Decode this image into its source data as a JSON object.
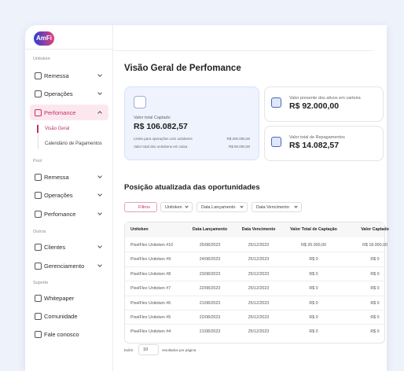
{
  "logo": "AmFi",
  "sidebar": [
    {
      "label": "Unitoken",
      "items": [
        "Remessa",
        "Operações",
        "Perfomance"
      ],
      "active": 2,
      "submenu": [
        "Visão Geral",
        "Calendário de Pagamentos"
      ]
    },
    {
      "label": "Pool",
      "items": [
        "Remessa",
        "Operações",
        "Perfomance"
      ]
    },
    {
      "label": "Outros",
      "items": [
        "Clientes",
        "Gerenciamento"
      ]
    },
    {
      "label": "Suporte",
      "items": [
        "Whitepaper",
        "Comunidade",
        "Fale conosco"
      ]
    }
  ],
  "header": {
    "title": "Visão Geral de Perfomance"
  },
  "cards": [
    {
      "label": "Valor total Captado",
      "amount": "R$ 106.082,57",
      "details": [
        [
          "Limite para operações com unitokens",
          "R$ 200.000,00"
        ],
        [
          "Valor total dos unitokens em caixa",
          "R$ 80.000,00"
        ]
      ]
    },
    {
      "label": "Valor presente dos ativos em carteira",
      "amount": "R$ 92.000,00"
    },
    {
      "label": "Valor total de Repagamentos",
      "amount": "R$ 14.082,57"
    }
  ],
  "section": {
    "title": "Posição atualizada das oportunidades",
    "filters": [
      "Filtros",
      "Unitoken",
      "Data Lançamento",
      "Data Vencimento"
    ]
  },
  "table": {
    "columns": [
      "Unitoken",
      "Data Lançamento",
      "Data Vencimento",
      "Valor Total de Captação",
      "Valor Captado"
    ],
    "rows": [
      [
        "PixelFlex Unitoken #10",
        "25/08/2023",
        "25/12/2023",
        "R$ 20.000,00",
        "R$ 18.000,00"
      ],
      [
        "PixelFlex Unitoken #9",
        "24/08/2023",
        "25/12/2023",
        "R$ 0",
        "R$ 0"
      ],
      [
        "PixelFlex Unitoken #8",
        "23/08/2023",
        "25/12/2023",
        "R$ 0",
        "R$ 0"
      ],
      [
        "PixelFlex Unitoken #7",
        "22/08/2023",
        "25/12/2023",
        "R$ 0",
        "R$ 0"
      ],
      [
        "PixelFlex Unitoken #6",
        "21/08/2023",
        "25/12/2023",
        "R$ 0",
        "R$ 0"
      ],
      [
        "PixelFlex Unitoken #5",
        "22/08/2023",
        "25/12/2023",
        "R$ 0",
        "R$ 0"
      ],
      [
        "PixelFlex Unitoken #4",
        "21/08/2023",
        "25/12/2023",
        "R$ 0",
        "R$ 0"
      ]
    ]
  },
  "footer": {
    "show": "Exibir",
    "size": "10",
    "suffix": "resultados por página"
  }
}
